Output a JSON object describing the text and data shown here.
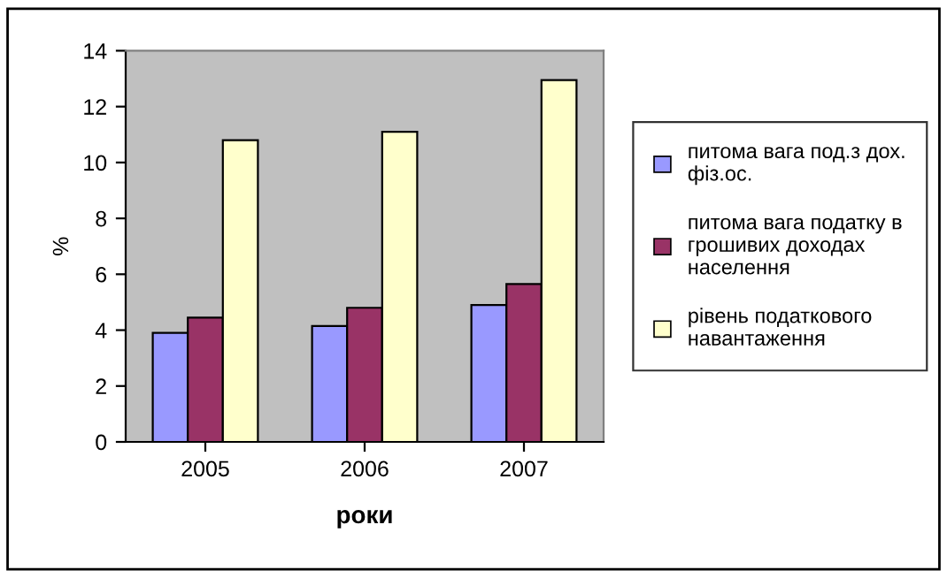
{
  "chart_data": {
    "type": "bar",
    "xlabel": "роки",
    "ylabel": "%",
    "categories": [
      "2005",
      "2006",
      "2007"
    ],
    "series": [
      {
        "name": "питома вага под.з дох. фіз.ос.",
        "color": "#9999ff",
        "values": [
          3.9,
          4.15,
          4.9
        ]
      },
      {
        "name": "питома вага податку в грошивих доходах населення",
        "color": "#993366",
        "values": [
          4.45,
          4.8,
          5.65
        ]
      },
      {
        "name": "рівень податкового навантаження",
        "color": "#ffffcc",
        "values": [
          10.8,
          11.1,
          12.95
        ]
      }
    ],
    "ylim": [
      0,
      14
    ],
    "yticks": [
      0,
      2,
      4,
      6,
      8,
      10,
      12,
      14
    ],
    "grid": false,
    "legend": "right"
  }
}
